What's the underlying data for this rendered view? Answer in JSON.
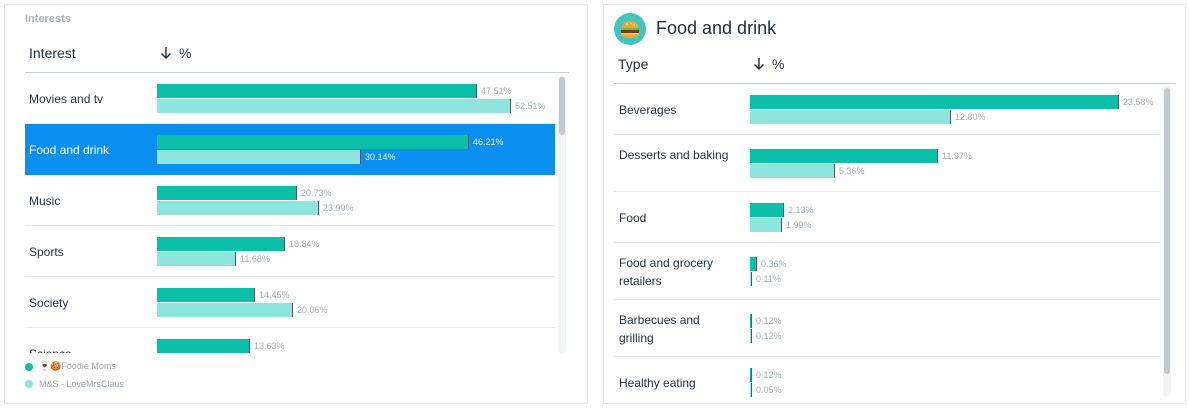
{
  "left": {
    "section_title": "Interests",
    "col_name": "Interest",
    "col_value": "%",
    "rows": [
      {
        "label": "Movies and tv",
        "a": 47.51,
        "a_label": "47.51%",
        "b": 52.51,
        "b_label": "52.51%",
        "selected": false
      },
      {
        "label": "Food and drink",
        "a": 46.21,
        "a_label": "46.21%",
        "b": 30.14,
        "b_label": "30.14%",
        "selected": true
      },
      {
        "label": "Music",
        "a": 20.73,
        "a_label": "20.73%",
        "b": 23.99,
        "b_label": "23.99%",
        "selected": false
      },
      {
        "label": "Sports",
        "a": 18.84,
        "a_label": "18.84%",
        "b": 11.68,
        "b_label": "11.68%",
        "selected": false
      },
      {
        "label": "Society",
        "a": 14.45,
        "a_label": "14.45%",
        "b": 20.06,
        "b_label": "20.06%",
        "selected": false
      },
      {
        "label": "Science",
        "a": 13.63,
        "a_label": "13.63%",
        "b": null,
        "b_label": "",
        "selected": false
      }
    ],
    "legend": [
      {
        "name": "🍷🍪Foodie Moms",
        "color": "#0bbfa9"
      },
      {
        "name": "M&S - LoveMrsClaus",
        "color": "#8fe5dd"
      }
    ]
  },
  "right": {
    "category_icon": "burger-icon",
    "category_title": "Food and drink",
    "col_name": "Type",
    "col_value": "%",
    "rows": [
      {
        "label": "Beverages",
        "a": 23.58,
        "a_label": "23.58%",
        "b": 12.8,
        "b_label": "12.80%"
      },
      {
        "label": "Desserts and baking",
        "a": 11.97,
        "a_label": "11.97%",
        "b": 5.36,
        "b_label": "5.36%"
      },
      {
        "label": "Food",
        "a": 2.13,
        "a_label": "2.13%",
        "b": 1.99,
        "b_label": "1.99%"
      },
      {
        "label": "Food and grocery retailers",
        "a": 0.36,
        "a_label": "0.36%",
        "b": 0.11,
        "b_label": "0.11%"
      },
      {
        "label": "Barbecues and grilling",
        "a": 0.12,
        "a_label": "0.12%",
        "b": 0.12,
        "b_label": "0.12%"
      },
      {
        "label": "Healthy eating",
        "a": 0.12,
        "a_label": "0.12%",
        "b": 0.05,
        "b_label": "0.05%"
      }
    ]
  },
  "colors": {
    "series_a": "#0bbfa9",
    "series_b": "#8fe5dd",
    "selected": "#0a8ef0"
  }
}
